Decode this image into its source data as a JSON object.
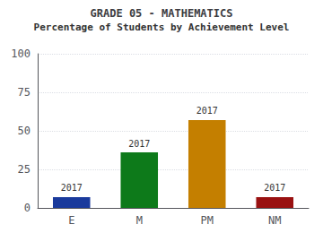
{
  "chart_data": {
    "type": "bar",
    "title": "GRADE 05 - MATHEMATICS",
    "subtitle": "Percentage of Students by Achievement Level",
    "categories": [
      "E",
      "M",
      "PM",
      "NM"
    ],
    "values": [
      7,
      36,
      57,
      7
    ],
    "colors": [
      "#1a3a9c",
      "#0d7a1a",
      "#c47f00",
      "#991111"
    ],
    "annotations": [
      "2017",
      "2017",
      "2017",
      "2017"
    ],
    "ylim": [
      0,
      100
    ],
    "yticks": [
      0,
      25,
      50,
      75,
      100
    ],
    "grid": true
  }
}
